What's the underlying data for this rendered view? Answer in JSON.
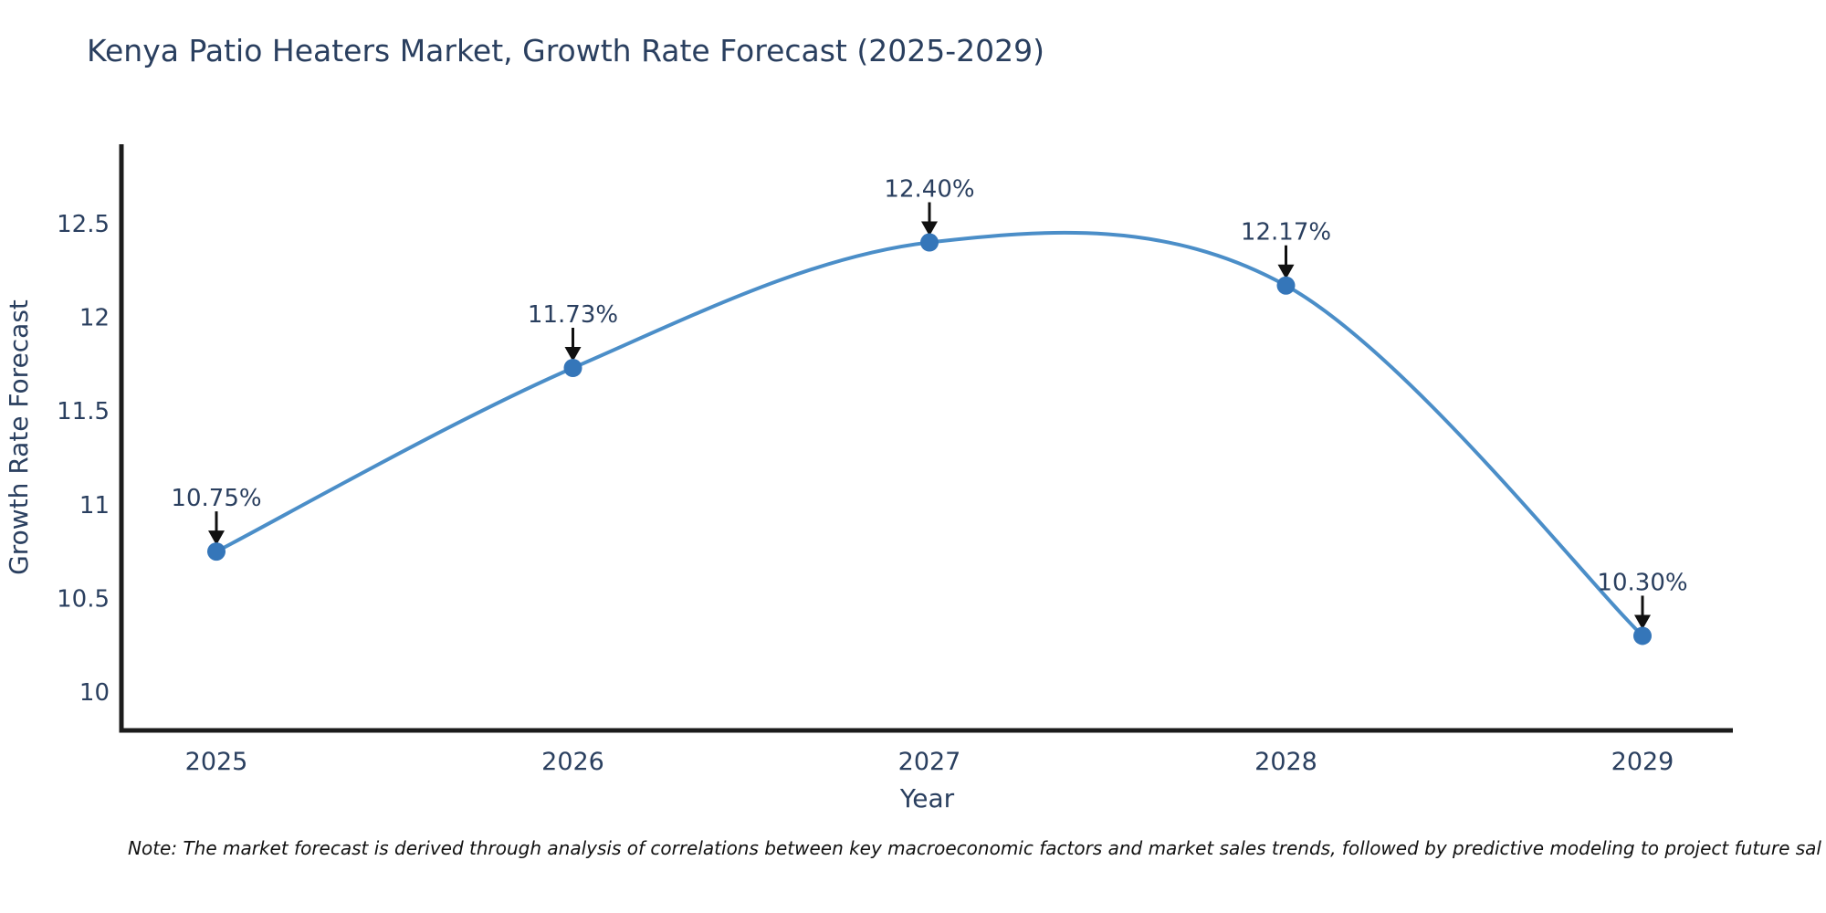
{
  "header": {
    "title": "Kenya Patio Heaters Market, Growth Rate Forecast (2025-2029)"
  },
  "footnote": {
    "text": "Note: The market forecast is derived through analysis of correlations between key macroeconomic factors and market sales trends, followed by predictive modeling to project future sal"
  },
  "chart_data": {
    "type": "line",
    "title": "Kenya Patio Heaters Market, Growth Rate Forecast (2025-2029)",
    "xlabel": "Year",
    "ylabel": "Growth Rate Forecast",
    "categories": [
      "2025",
      "2026",
      "2027",
      "2028",
      "2029"
    ],
    "values": [
      10.75,
      11.73,
      12.4,
      12.17,
      10.3
    ],
    "point_labels": [
      "10.75%",
      "11.73%",
      "12.40%",
      "12.17%",
      "10.30%"
    ],
    "yticks": [
      10,
      10.5,
      11,
      11.5,
      12,
      12.5
    ],
    "ylim": [
      9.8,
      12.9
    ],
    "line_shape": "spline",
    "grid": false,
    "legend_position": "none",
    "colors": {
      "line": "#4b8ec8",
      "marker": "#3576b9",
      "text": "#2a3f5f",
      "axis": "#1c1c1c",
      "arrow": "#111111",
      "note": "#111111",
      "background": "#ffffff"
    }
  }
}
